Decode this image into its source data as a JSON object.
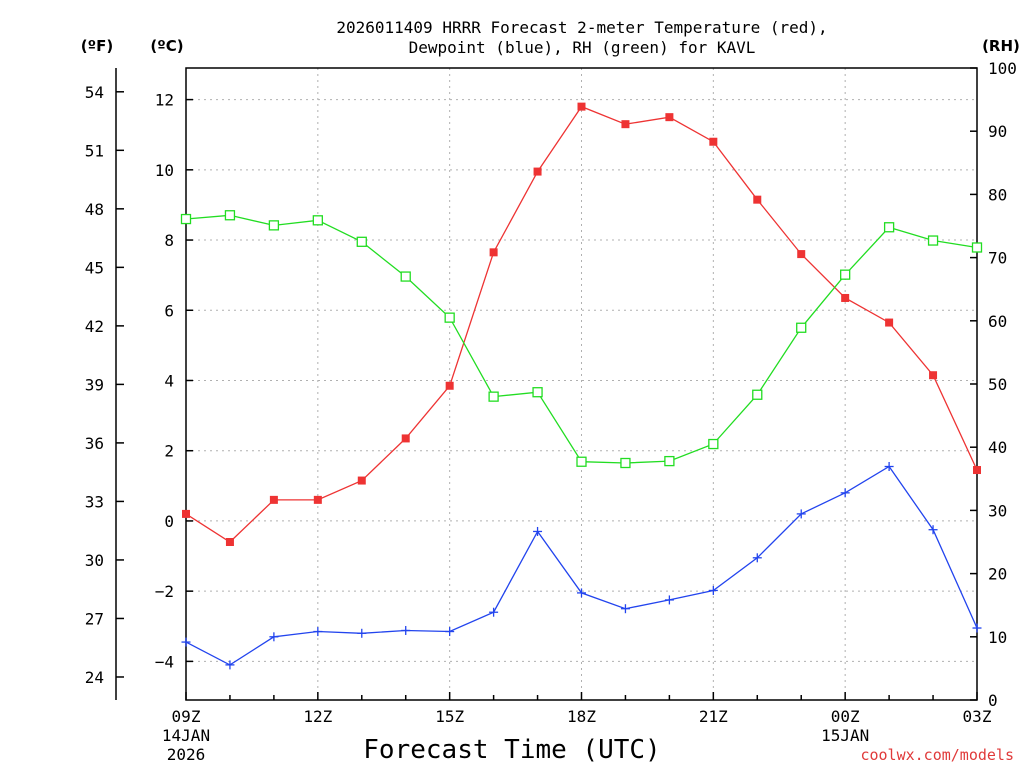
{
  "chart_data": {
    "type": "line",
    "title_line1": "2026011409 HRRR Forecast 2-meter Temperature (red),",
    "title_line2": "Dewpoint (blue), RH (green) for KAVL",
    "xlabel": "Forecast Time (UTC)",
    "credit": "coolwx.com/models",
    "axis_units": {
      "fahrenheit": "(ºF)",
      "celsius": "(ºC)",
      "rh": "(RH)"
    },
    "x": [
      "09Z",
      "10Z",
      "11Z",
      "12Z",
      "13Z",
      "14Z",
      "15Z",
      "16Z",
      "17Z",
      "18Z",
      "19Z",
      "20Z",
      "21Z",
      "22Z",
      "23Z",
      "00Z",
      "01Z",
      "02Z",
      "03Z"
    ],
    "x_tick_labels": [
      {
        "hour": "09Z",
        "date": "14JAN",
        "year": "2026"
      },
      {
        "hour": "12Z",
        "date": "",
        "year": ""
      },
      {
        "hour": "15Z",
        "date": "",
        "year": ""
      },
      {
        "hour": "18Z",
        "date": "",
        "year": ""
      },
      {
        "hour": "21Z",
        "date": "",
        "year": ""
      },
      {
        "hour": "00Z",
        "date": "15JAN",
        "year": ""
      },
      {
        "hour": "03Z",
        "date": "",
        "year": ""
      }
    ],
    "celsius_ticks": [
      -4,
      -2,
      0,
      2,
      4,
      6,
      8,
      10,
      12
    ],
    "fahrenheit_ticks": [
      24,
      27,
      30,
      33,
      36,
      39,
      42,
      45,
      48,
      51,
      54
    ],
    "rh_ticks": [
      0,
      10,
      20,
      30,
      40,
      50,
      60,
      70,
      80,
      90,
      100
    ],
    "ylim_celsius": [
      -5.1,
      12.9
    ],
    "ylim_rh": [
      0,
      100
    ],
    "grid": true,
    "series": [
      {
        "name": "Temperature",
        "color": "#ee3333",
        "marker": "filled-square",
        "axis": "celsius",
        "values": [
          0.2,
          -0.6,
          0.6,
          0.6,
          1.15,
          2.35,
          3.85,
          7.65,
          9.95,
          11.8,
          11.3,
          11.5,
          10.8,
          9.15,
          7.6,
          6.35,
          5.65,
          4.15,
          1.45
        ]
      },
      {
        "name": "Dewpoint",
        "color": "#2244ee",
        "marker": "plus",
        "axis": "celsius",
        "values": [
          -3.45,
          -4.1,
          -3.3,
          -3.15,
          -3.2,
          -3.12,
          -3.15,
          -2.6,
          -0.3,
          -2.05,
          -2.5,
          -2.25,
          -1.98,
          -1.05,
          0.2,
          0.8,
          1.55,
          -0.25,
          -3.05
        ]
      },
      {
        "name": "RH",
        "color": "#22dd22",
        "marker": "open-square",
        "axis": "rh",
        "values": [
          76.1,
          76.7,
          75.1,
          75.9,
          72.5,
          67.0,
          60.5,
          48.0,
          48.7,
          37.7,
          37.5,
          37.8,
          40.5,
          48.3,
          58.9,
          67.3,
          74.8,
          72.7,
          71.6
        ]
      }
    ]
  }
}
